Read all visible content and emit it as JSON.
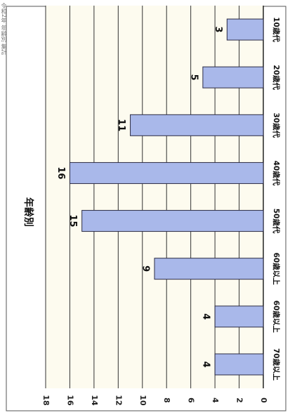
{
  "side_note": "令和2年 年齢別 集計",
  "chart_data": {
    "type": "bar",
    "title": "年齢別",
    "categories": [
      "10歳代",
      "20歳代",
      "30歳代",
      "40歳代",
      "50歳代",
      "60歳以上",
      "60歳以上",
      "70歳以上"
    ],
    "values": [
      3,
      5,
      11,
      16,
      15,
      9,
      4,
      4
    ],
    "ylim": [
      0,
      18
    ],
    "yticks": [
      0,
      2,
      4,
      6,
      8,
      10,
      12,
      14,
      16,
      18
    ],
    "xlabel": "",
    "ylabel": "",
    "orientation": "rotated-90",
    "grid": true,
    "legend": "none",
    "colors": {
      "bar": "#a9b8ea",
      "bar_stroke": "#2c2c44",
      "plot_bg": "#fdfbef",
      "grid": "#333333"
    }
  }
}
